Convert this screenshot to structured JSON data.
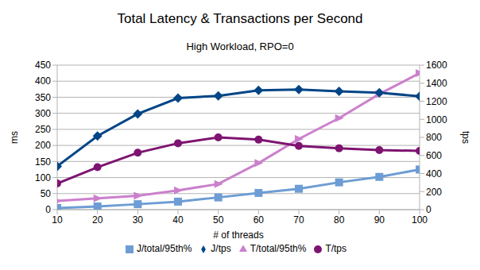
{
  "chart_data": {
    "type": "line",
    "title": "Total Latency & Transactions per Second",
    "subtitle": "High Workload, RPO=0",
    "x_label": "# of threads",
    "y_label": "ms",
    "y2_label": "tps",
    "x": [
      10,
      20,
      30,
      40,
      50,
      60,
      70,
      80,
      90,
      100
    ],
    "xlim": [
      10,
      100
    ],
    "xticks": [
      10,
      20,
      30,
      40,
      50,
      60,
      70,
      80,
      90,
      100
    ],
    "ylim": [
      0,
      450
    ],
    "yticks": [
      0,
      50,
      100,
      150,
      200,
      250,
      300,
      350,
      400,
      450
    ],
    "y2lim": [
      0,
      1600
    ],
    "y2ticks": [
      0,
      200,
      400,
      600,
      800,
      1000,
      1200,
      1400,
      1600
    ],
    "grid": true,
    "legend": "bottom",
    "series": [
      {
        "name": "T/total/95th%",
        "color": "#cc80cc",
        "marker": "triangle",
        "values": [
          27,
          35,
          43,
          60,
          80,
          145,
          220,
          285,
          360,
          425
        ]
      },
      {
        "name": "T/tps",
        "color": "#7e1470",
        "marker": "circle",
        "axis": "y2",
        "values": [
          290,
          470,
          630,
          735,
          800,
          775,
          705,
          680,
          660,
          650
        ]
      },
      {
        "name": "J/total/95th%",
        "color": "#6d9dd4",
        "marker": "square",
        "values": [
          5,
          10,
          17,
          25,
          38,
          52,
          65,
          85,
          102,
          125
        ]
      },
      {
        "name": "J/tps",
        "color": "#004586",
        "marker": "diamond",
        "axis": "y2",
        "values": [
          480,
          815,
          1060,
          1235,
          1260,
          1320,
          1330,
          1310,
          1295,
          1255
        ]
      }
    ]
  }
}
